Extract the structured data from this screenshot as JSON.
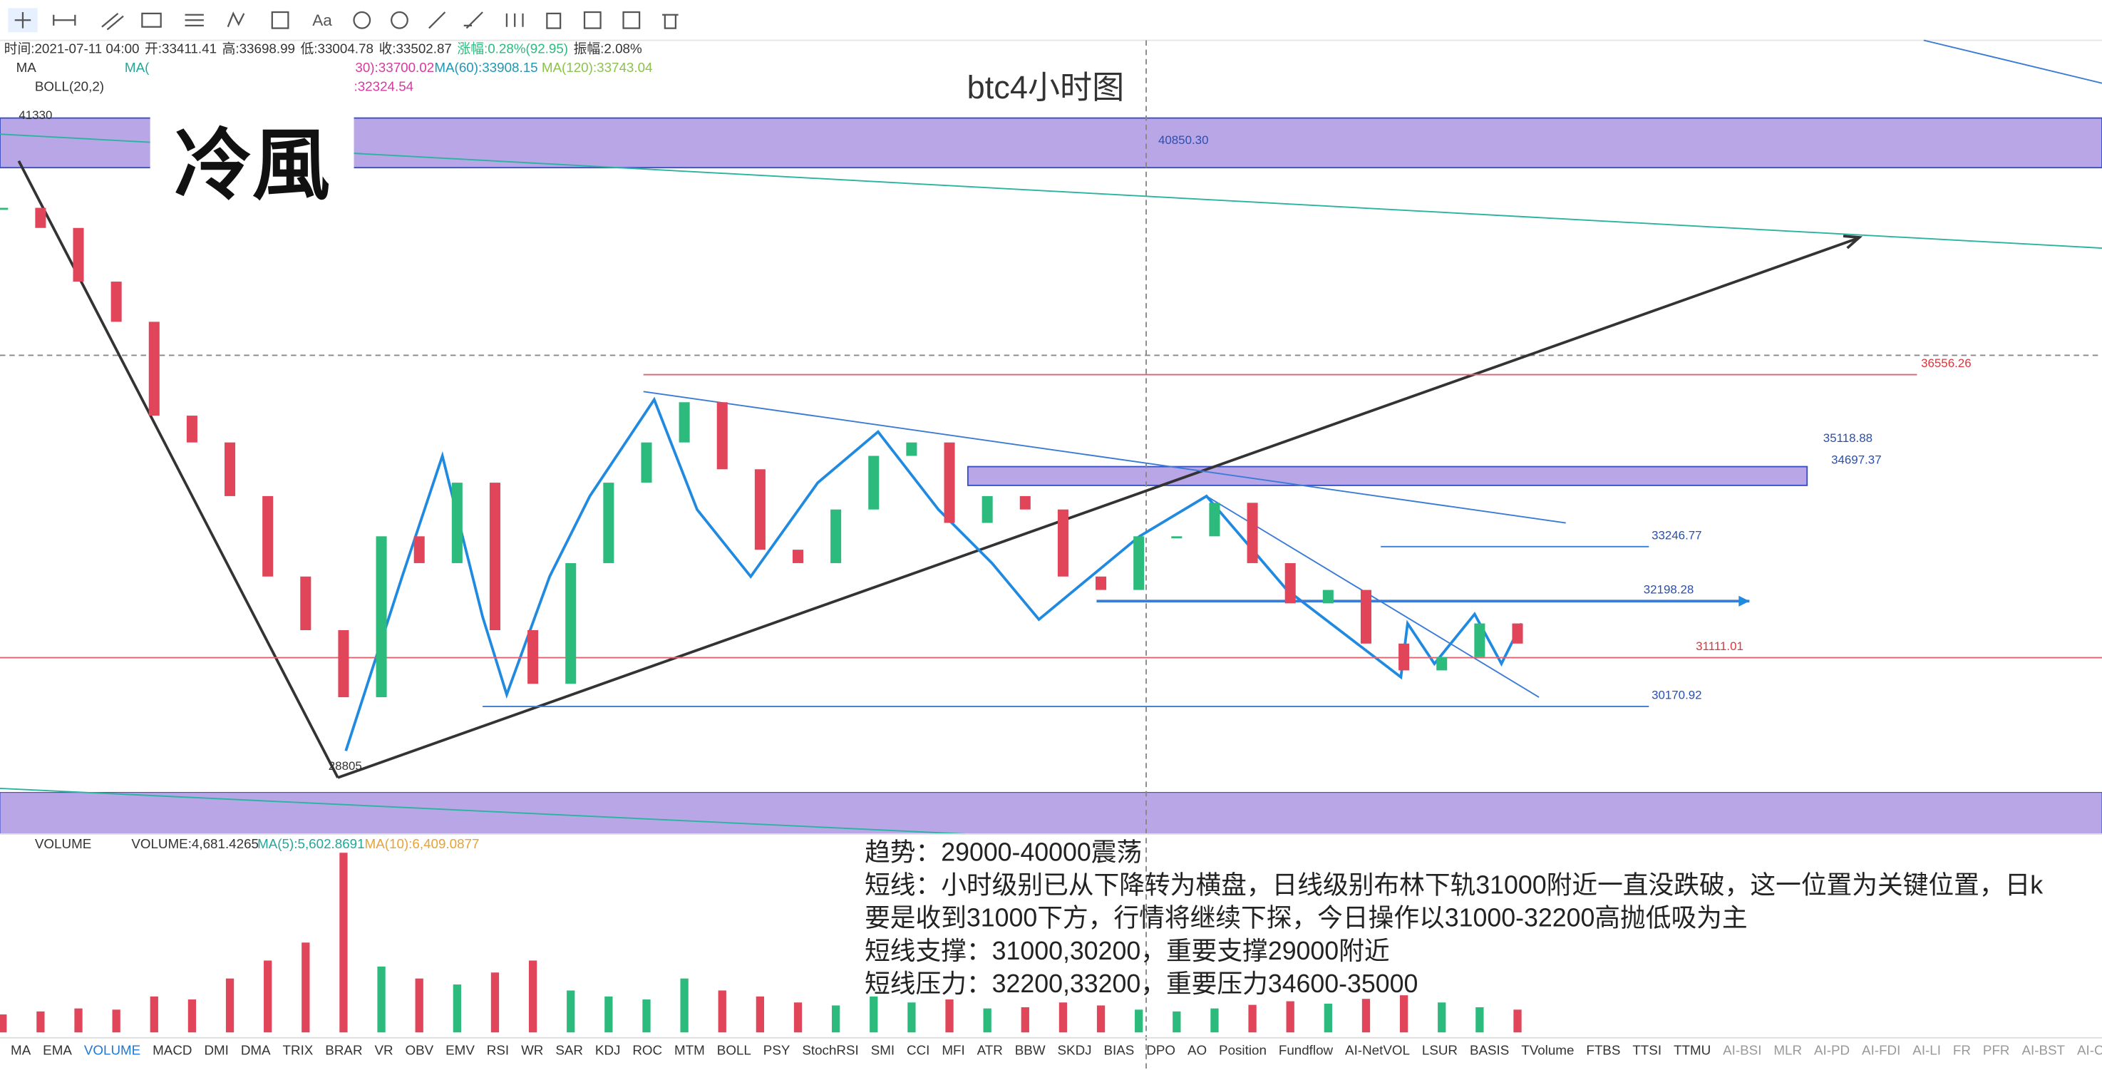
{
  "chart_data": {
    "type": "candlestick",
    "title": "btc4小时图",
    "logo": "冷風",
    "info_bar": [
      "时间:2021-07-11 04:00",
      "开:33411.41",
      "高:33698.99",
      "低:33004.78",
      "收:33502.87",
      "涨幅:0.28%(92.95)",
      "振幅:2.08%"
    ],
    "ma_legend": [
      "MA",
      "MA(",
      "30):33700.02",
      "MA(60):33908.15",
      "MA(120):33743.04"
    ],
    "boll_legend": [
      "BOLL(20,2)",
      ":32324.54"
    ],
    "toolbar_text": "Aa",
    "ylim": [
      27718,
      42991
    ],
    "closes": [
      39767,
      39380,
      38347,
      37574,
      35768,
      35252,
      34220,
      32672,
      31640,
      30350,
      33446,
      32930,
      34478,
      31640,
      30608,
      32930,
      34478,
      35252,
      36026,
      34736,
      33188,
      32930,
      33962,
      34994,
      35252,
      33704,
      34220,
      33962,
      32672,
      32414,
      33446,
      33446,
      34091,
      32930,
      32156,
      32414,
      31382,
      30866,
      31124,
      31769,
      31382
    ],
    "price_levels": [
      {
        "value": 41330,
        "label": "41330"
      },
      {
        "value": 40850.3,
        "label": "40850.30"
      },
      {
        "value": 36556.26,
        "label": "36556.26"
      },
      {
        "value": 35118.88,
        "label": "35118.88"
      },
      {
        "value": 34697.37,
        "label": "34697.37"
      },
      {
        "value": 33246.77,
        "label": "33246.77"
      },
      {
        "value": 32198.28,
        "label": "32198.28"
      },
      {
        "value": 31111.01,
        "label": "31111.01"
      },
      {
        "value": 30170.92,
        "label": "30170.92"
      },
      {
        "value": 28805,
        "label": "28805"
      }
    ],
    "volume_legend": [
      "VOLUME",
      "VOLUME:4,681.4265",
      "MA(5):5,602.8691",
      "MA(10):6,409.0877"
    ],
    "volume_ylim": [
      0,
      30000
    ],
    "volumes": [
      3000,
      3500,
      4000,
      3800,
      6000,
      5500,
      9000,
      12000,
      15000,
      30000,
      11000,
      9000,
      8000,
      10000,
      12000,
      7000,
      6000,
      5500,
      9000,
      7000,
      6000,
      5000,
      4500,
      6000,
      5000,
      5500,
      4000,
      4200,
      5000,
      4500,
      3800,
      3500,
      4000,
      4600,
      5200,
      4800,
      5600,
      6200,
      5000,
      4200,
      3800
    ],
    "annotation": [
      "趋势：29000-40000震荡",
      "短线：小时级别已从下降转为横盘，日线级别布林下轨31000附近一直没跌破，这一位置为关键位置，日k",
      "要是收到31000下方，行情将继续下探，今日操作以31000-32200高抛低吸为主",
      "短线支撑：31000,30200，重要支撑29000附近",
      "短线压力：32200,33200，重要压力34600-35000"
    ],
    "indicator_tabs": [
      "MA",
      "EMA",
      "VOLUME",
      "MACD",
      "DMI",
      "DMA",
      "TRIX",
      "BRAR",
      "VR",
      "OBV",
      "EMV",
      "RSI",
      "WR",
      "SAR",
      "KDJ",
      "ROC",
      "MTM",
      "BOLL",
      "PSY",
      "StochRSI",
      "SMI",
      "CCI",
      "MFI",
      "ATR",
      "BBW",
      "SKDJ",
      "BIAS",
      "DPO",
      "AO",
      "Position",
      "Fundflow",
      "AI-NetVOL",
      "LSUR",
      "BASIS",
      "TVolume",
      "FTBS",
      "TTSI",
      "TTMU",
      "AI-BSI",
      "MLR",
      "AI-PD",
      "AI-FDI",
      "AI-LI",
      "FR",
      "PFR",
      "AI-BST",
      "AI-CMLSI"
    ]
  }
}
